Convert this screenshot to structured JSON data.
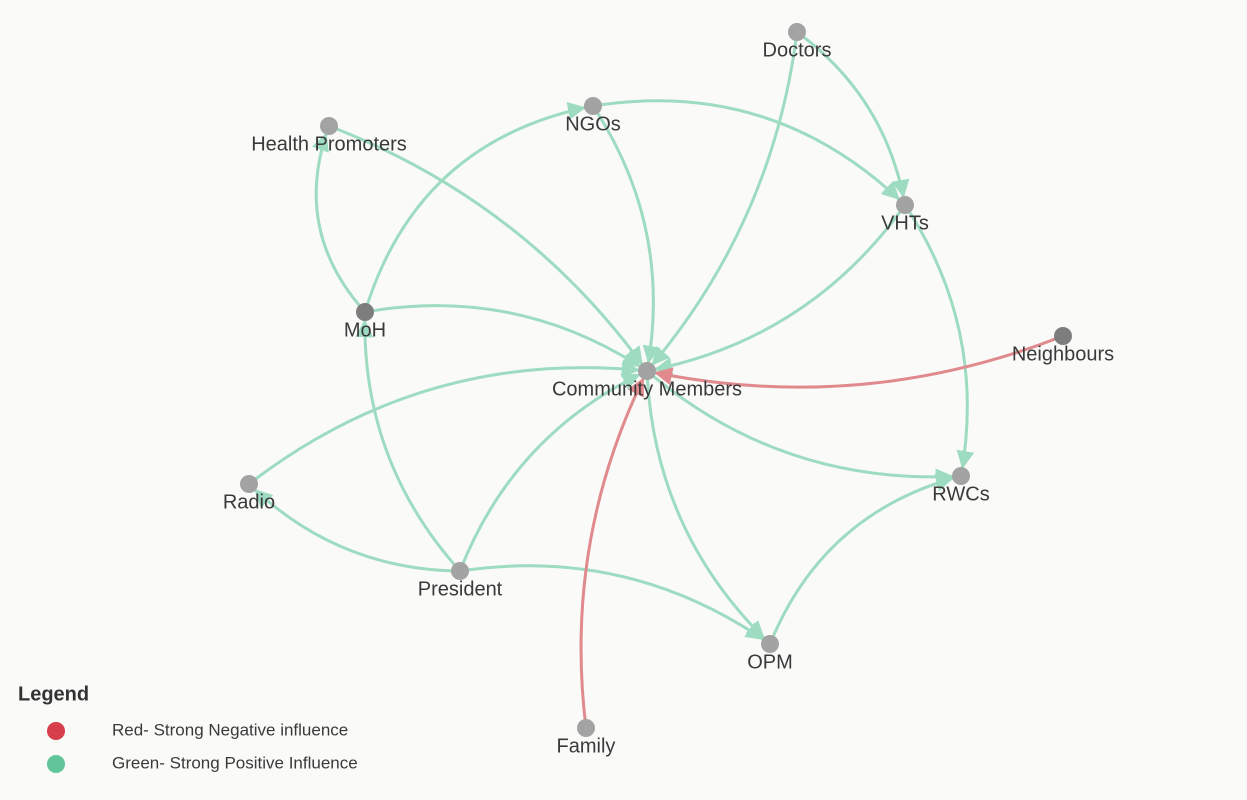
{
  "nodes": [
    {
      "label": "Doctors"
    },
    {
      "label": "NGOs"
    },
    {
      "label": "Health Promoters"
    },
    {
      "label": "VHTs"
    },
    {
      "label": "MoH"
    },
    {
      "label": "Neighbours"
    },
    {
      "label": "Community Members"
    },
    {
      "label": "RWCs"
    },
    {
      "label": "Radio"
    },
    {
      "label": "President"
    },
    {
      "label": "OPM"
    },
    {
      "label": "Family"
    }
  ],
  "legend": {
    "title": "Legend",
    "items": [
      {
        "label": "Red- Strong Negative influence",
        "color": "#d63e4b"
      },
      {
        "label": "Green- Strong Positive Influence",
        "color": "#62c49a"
      }
    ]
  }
}
